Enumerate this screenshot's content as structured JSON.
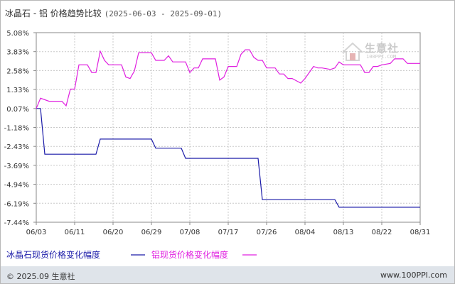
{
  "title": "冰晶石 - 铝 价格趋势比较",
  "date_range": "(2025-06-03 - 2025-09-01)",
  "watermark": {
    "name": "生意社",
    "url": "100PPI.COM"
  },
  "footer": {
    "copyright": "© 2025.09 生意社",
    "website": "www.100PPI.com"
  },
  "colors": {
    "series1": "#1a1aa8",
    "series2": "#e020e0",
    "grid": "#c8c8c8",
    "axis": "#333333"
  },
  "chart_data": {
    "type": "line",
    "xlabels": [
      "06/03",
      "06/11",
      "06/20",
      "06/29",
      "07/08",
      "07/17",
      "07/26",
      "08/04",
      "08/13",
      "08/22",
      "08/31"
    ],
    "ylabels": [
      "5.08%",
      "3.83%",
      "2.58%",
      "1.33%",
      "0.07%",
      "-1.18%",
      "-2.43%",
      "-3.69%",
      "-4.94%",
      "-6.19%",
      "-7.44%"
    ],
    "ylim": [
      -7.44,
      5.08
    ],
    "x_start": "2025-06-03",
    "x_end": "2025-09-01",
    "grid": true,
    "legend_position": "bottom-left",
    "series": [
      {
        "name": "冰晶石现货价格变化幅度",
        "points": [
          [
            "2025-06-03",
            0.07
          ],
          [
            "2025-06-04",
            0.07
          ],
          [
            "2025-06-05",
            -2.95
          ],
          [
            "2025-06-17",
            -2.95
          ],
          [
            "2025-06-18",
            -1.95
          ],
          [
            "2025-06-30",
            -1.95
          ],
          [
            "2025-07-01",
            -2.55
          ],
          [
            "2025-07-07",
            -2.55
          ],
          [
            "2025-07-08",
            -3.22
          ],
          [
            "2025-07-25",
            -3.22
          ],
          [
            "2025-07-26",
            -5.95
          ],
          [
            "2025-08-12",
            -5.95
          ],
          [
            "2025-08-13",
            -6.45
          ],
          [
            "2025-09-01",
            -6.45
          ]
        ]
      },
      {
        "name": "铝现货价格变化幅度",
        "points": [
          [
            "2025-06-03",
            0.07
          ],
          [
            "2025-06-04",
            0.75
          ],
          [
            "2025-06-06",
            0.55
          ],
          [
            "2025-06-07",
            0.55
          ],
          [
            "2025-06-09",
            0.55
          ],
          [
            "2025-06-10",
            0.25
          ],
          [
            "2025-06-11",
            1.35
          ],
          [
            "2025-06-12",
            1.35
          ],
          [
            "2025-06-13",
            2.95
          ],
          [
            "2025-06-15",
            2.95
          ],
          [
            "2025-06-16",
            2.45
          ],
          [
            "2025-06-17",
            2.45
          ],
          [
            "2025-06-18",
            3.85
          ],
          [
            "2025-06-19",
            3.25
          ],
          [
            "2025-06-20",
            2.95
          ],
          [
            "2025-06-23",
            2.95
          ],
          [
            "2025-06-24",
            2.15
          ],
          [
            "2025-06-25",
            2.05
          ],
          [
            "2025-06-26",
            2.55
          ],
          [
            "2025-06-27",
            3.75
          ],
          [
            "2025-06-30",
            3.75
          ],
          [
            "2025-07-01",
            3.25
          ],
          [
            "2025-07-03",
            3.25
          ],
          [
            "2025-07-04",
            3.55
          ],
          [
            "2025-07-05",
            3.15
          ],
          [
            "2025-07-08",
            3.15
          ],
          [
            "2025-07-09",
            2.45
          ],
          [
            "2025-07-10",
            2.75
          ],
          [
            "2025-07-11",
            2.75
          ],
          [
            "2025-07-12",
            3.35
          ],
          [
            "2025-07-15",
            3.35
          ],
          [
            "2025-07-16",
            1.95
          ],
          [
            "2025-07-17",
            2.15
          ],
          [
            "2025-07-18",
            2.85
          ],
          [
            "2025-07-20",
            2.85
          ],
          [
            "2025-07-21",
            3.65
          ],
          [
            "2025-07-22",
            3.95
          ],
          [
            "2025-07-23",
            3.95
          ],
          [
            "2025-07-24",
            3.45
          ],
          [
            "2025-07-25",
            3.25
          ],
          [
            "2025-07-26",
            3.25
          ],
          [
            "2025-07-27",
            2.75
          ],
          [
            "2025-07-29",
            2.75
          ],
          [
            "2025-07-30",
            2.35
          ],
          [
            "2025-07-31",
            2.35
          ],
          [
            "2025-08-01",
            2.05
          ],
          [
            "2025-08-02",
            2.05
          ],
          [
            "2025-08-04",
            1.75
          ],
          [
            "2025-08-05",
            2.05
          ],
          [
            "2025-08-06",
            2.45
          ],
          [
            "2025-08-07",
            2.85
          ],
          [
            "2025-08-08",
            2.75
          ],
          [
            "2025-08-09",
            2.75
          ],
          [
            "2025-08-11",
            2.65
          ],
          [
            "2025-08-12",
            2.75
          ],
          [
            "2025-08-13",
            3.15
          ],
          [
            "2025-08-14",
            2.95
          ],
          [
            "2025-08-18",
            2.95
          ],
          [
            "2025-08-19",
            2.45
          ],
          [
            "2025-08-20",
            2.45
          ],
          [
            "2025-08-21",
            2.85
          ],
          [
            "2025-08-22",
            2.85
          ],
          [
            "2025-08-23",
            2.95
          ],
          [
            "2025-08-25",
            3.05
          ],
          [
            "2025-08-26",
            3.35
          ],
          [
            "2025-08-28",
            3.35
          ],
          [
            "2025-08-29",
            3.05
          ],
          [
            "2025-09-01",
            3.05
          ]
        ]
      }
    ]
  }
}
